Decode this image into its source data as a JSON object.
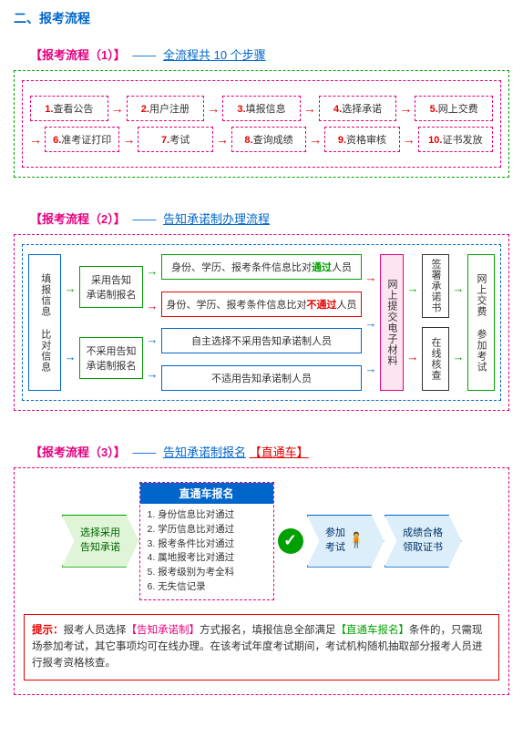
{
  "title": "二、报考流程",
  "flow1": {
    "header_bracket": "【报考流程（1）】",
    "header_link": "全流程共 10 个步骤",
    "steps": [
      {
        "n": "1.",
        "t": "查看公告"
      },
      {
        "n": "2.",
        "t": "用户注册"
      },
      {
        "n": "3.",
        "t": "填报信息"
      },
      {
        "n": "4.",
        "t": "选择承诺"
      },
      {
        "n": "5.",
        "t": "网上交费"
      },
      {
        "n": "6.",
        "t": "准考证打印"
      },
      {
        "n": "7.",
        "t": "考试"
      },
      {
        "n": "8.",
        "t": "查询成绩"
      },
      {
        "n": "9.",
        "t": "资格审核"
      },
      {
        "n": "10.",
        "t": "证书发放"
      }
    ]
  },
  "flow2": {
    "header_bracket": "【报考流程（2）】",
    "header_link": "告知承诺制办理流程",
    "left": "填报信息 比对信息",
    "mid1": [
      "采用告知\n承诺制报名",
      "不采用告知\n承诺制报名"
    ],
    "mid2": [
      {
        "pre": "身份、学历、报考条件信息比对",
        "kw": "通过",
        "post": "人员",
        "cls": "b-green",
        "kcls": "t-green"
      },
      {
        "pre": "身份、学历、报考条件信息比对",
        "kw": "不通过",
        "post": "人员",
        "cls": "b-red",
        "kcls": "t-red"
      },
      {
        "pre": "自主选择不采用告知承诺制人员",
        "kw": "",
        "post": "",
        "cls": "b-blue",
        "kcls": ""
      },
      {
        "pre": "不适用告知承诺制人员",
        "kw": "",
        "post": "",
        "cls": "b-blue",
        "kcls": ""
      }
    ],
    "upload": "网上提交电子材料",
    "right": [
      {
        "t": "签署承诺书",
        "cls": "b-green"
      },
      {
        "t": "在线核查",
        "cls": "b-mag"
      }
    ],
    "final": "网上交费 参加考试"
  },
  "flow3": {
    "header_bracket": "【报考流程（3）】",
    "header_link": "告知承诺制报名",
    "header_red": "【直通车】",
    "chev1": "选择采用\n告知承诺",
    "express_title": "直通车报名",
    "express_items": [
      "1. 身份信息比对通过",
      "2. 学历信息比对通过",
      "3. 报考条件比对通过",
      "4. 属地报考比对通过",
      "5. 报考级别为考全科",
      "6. 无失信记录"
    ],
    "chev2": "参加\n考试",
    "chev3": "成绩合格\n领取证书",
    "tip_label": "提示：",
    "tip_p1": "报考人员选择",
    "tip_hl1": "【告知承诺制】",
    "tip_p2": "方式报名，填报信息全部满足",
    "tip_hl2": "【直通车报名】",
    "tip_p3": "条件的，只需现场参加考试，其它事项均可在线办理。在该考试年度考试期间，考试机构随机抽取部分报考人员进行报考资格核查。"
  },
  "colors": {
    "magenta": "#e6007e",
    "blue": "#0066cc",
    "green": "#00a000",
    "red": "#e60000"
  }
}
